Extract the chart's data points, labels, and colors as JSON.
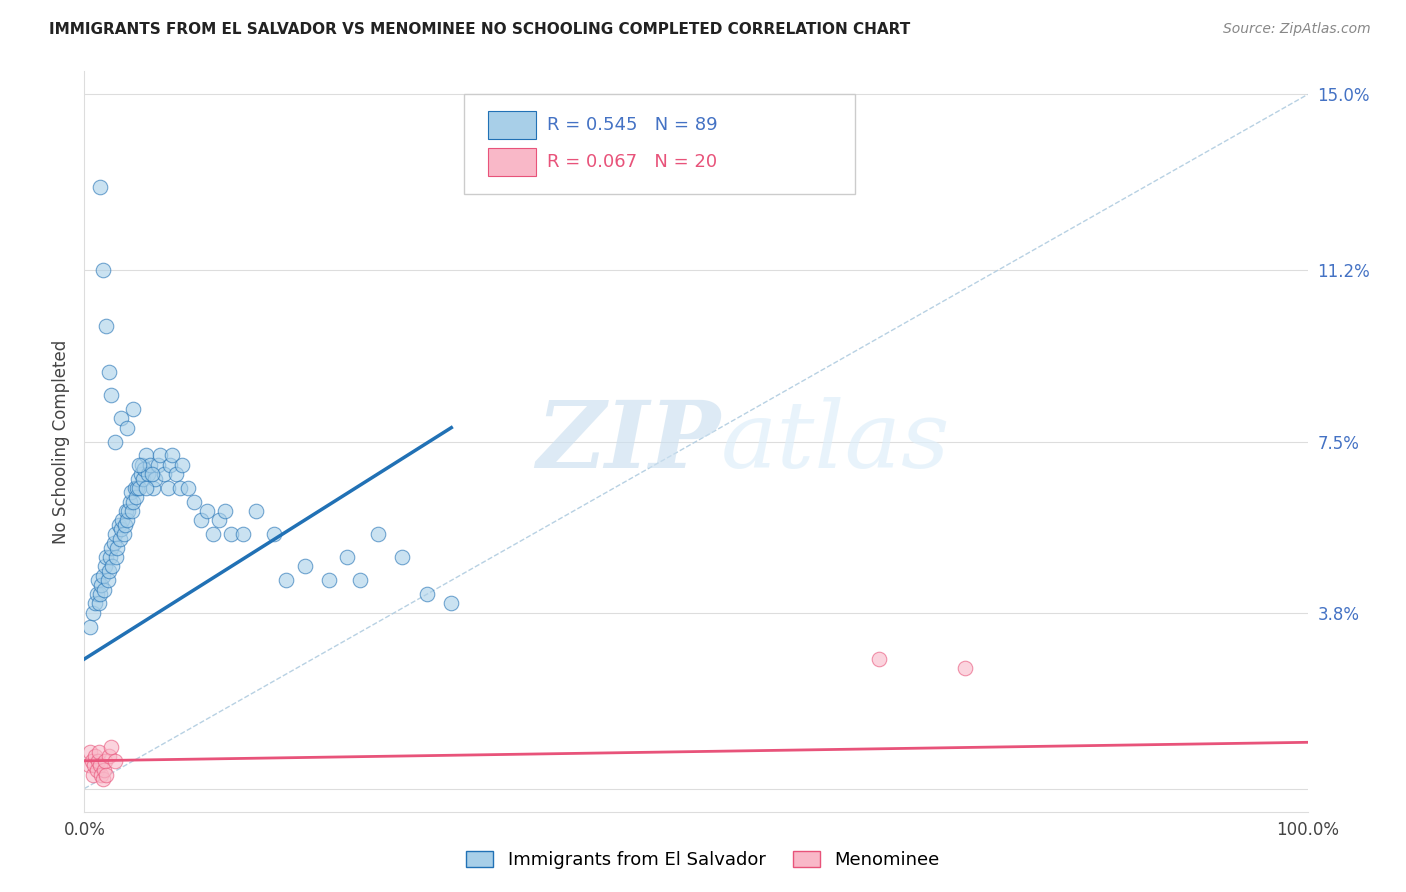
{
  "title": "IMMIGRANTS FROM EL SALVADOR VS MENOMINEE NO SCHOOLING COMPLETED CORRELATION CHART",
  "source": "Source: ZipAtlas.com",
  "ylabel": "No Schooling Completed",
  "xlim": [
    0.0,
    1.0
  ],
  "ylim": [
    -0.005,
    0.155
  ],
  "ytick_positions": [
    0.0,
    0.038,
    0.075,
    0.112,
    0.15
  ],
  "ytick_labels": [
    "",
    "3.8%",
    "7.5%",
    "11.2%",
    "15.0%"
  ],
  "legend_label_blue": "Immigrants from El Salvador",
  "legend_label_pink": "Menominee",
  "blue_color": "#a8cfe8",
  "pink_color": "#f9b8c8",
  "line_blue": "#2171b5",
  "line_pink": "#e8537a",
  "diag_color": "#b0cce0",
  "watermark_zip": "ZIP",
  "watermark_atlas": "atlas",
  "blue_scatter_x": [
    0.005,
    0.007,
    0.009,
    0.01,
    0.011,
    0.012,
    0.013,
    0.014,
    0.015,
    0.016,
    0.017,
    0.018,
    0.019,
    0.02,
    0.021,
    0.022,
    0.023,
    0.024,
    0.025,
    0.026,
    0.027,
    0.028,
    0.029,
    0.03,
    0.031,
    0.032,
    0.033,
    0.034,
    0.035,
    0.036,
    0.037,
    0.038,
    0.039,
    0.04,
    0.041,
    0.042,
    0.043,
    0.044,
    0.045,
    0.046,
    0.047,
    0.048,
    0.049,
    0.05,
    0.052,
    0.054,
    0.056,
    0.058,
    0.06,
    0.062,
    0.065,
    0.068,
    0.07,
    0.072,
    0.075,
    0.078,
    0.08,
    0.085,
    0.09,
    0.095,
    0.1,
    0.105,
    0.11,
    0.115,
    0.12,
    0.13,
    0.14,
    0.155,
    0.165,
    0.18,
    0.2,
    0.215,
    0.225,
    0.24,
    0.26,
    0.28,
    0.3,
    0.025,
    0.03,
    0.035,
    0.04,
    0.045,
    0.05,
    0.055,
    0.02,
    0.022,
    0.018,
    0.015,
    0.013
  ],
  "blue_scatter_y": [
    0.035,
    0.038,
    0.04,
    0.042,
    0.045,
    0.04,
    0.042,
    0.044,
    0.046,
    0.043,
    0.048,
    0.05,
    0.045,
    0.047,
    0.05,
    0.052,
    0.048,
    0.053,
    0.055,
    0.05,
    0.052,
    0.057,
    0.054,
    0.056,
    0.058,
    0.055,
    0.057,
    0.06,
    0.058,
    0.06,
    0.062,
    0.064,
    0.06,
    0.062,
    0.065,
    0.063,
    0.065,
    0.067,
    0.065,
    0.068,
    0.07,
    0.067,
    0.069,
    0.072,
    0.068,
    0.07,
    0.065,
    0.067,
    0.07,
    0.072,
    0.068,
    0.065,
    0.07,
    0.072,
    0.068,
    0.065,
    0.07,
    0.065,
    0.062,
    0.058,
    0.06,
    0.055,
    0.058,
    0.06,
    0.055,
    0.055,
    0.06,
    0.055,
    0.045,
    0.048,
    0.045,
    0.05,
    0.045,
    0.055,
    0.05,
    0.042,
    0.04,
    0.075,
    0.08,
    0.078,
    0.082,
    0.07,
    0.065,
    0.068,
    0.09,
    0.085,
    0.1,
    0.112,
    0.13
  ],
  "pink_scatter_x": [
    0.004,
    0.005,
    0.006,
    0.007,
    0.008,
    0.009,
    0.01,
    0.011,
    0.012,
    0.013,
    0.014,
    0.015,
    0.016,
    0.017,
    0.018,
    0.02,
    0.022,
    0.025,
    0.65,
    0.72
  ],
  "pink_scatter_y": [
    0.005,
    0.008,
    0.006,
    0.003,
    0.005,
    0.007,
    0.004,
    0.006,
    0.008,
    0.005,
    0.003,
    0.002,
    0.004,
    0.006,
    0.003,
    0.007,
    0.009,
    0.006,
    0.028,
    0.026
  ],
  "blue_line_x": [
    0.0,
    0.3
  ],
  "blue_line_y": [
    0.028,
    0.078
  ],
  "pink_line_x": [
    0.0,
    1.0
  ],
  "pink_line_y": [
    0.006,
    0.01
  ],
  "diag_line_x": [
    0.0,
    1.0
  ],
  "diag_line_y": [
    0.0,
    0.15
  ],
  "grid_color": "#dddddd",
  "title_fontsize": 11,
  "source_fontsize": 10,
  "tick_fontsize": 12,
  "ylabel_fontsize": 12
}
